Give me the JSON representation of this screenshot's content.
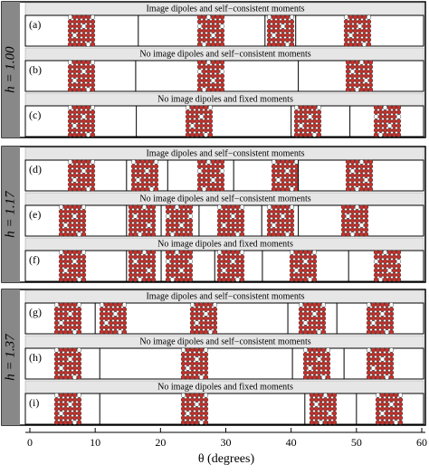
{
  "chart_data": {
    "type": "phase-strips",
    "xlabel": "θ (degrees)",
    "xlim": [
      0,
      60
    ],
    "xticks": [
      0,
      10,
      20,
      30,
      40,
      50,
      60
    ],
    "groups": [
      {
        "label": "h = 1.00",
        "panels": [
          {
            "label": "(a)",
            "header": "Image dipoles and self−consistent moments",
            "transitions": [
              16.6,
              36.0,
              40.7
            ]
          },
          {
            "label": "(b)",
            "header": "No image dipoles and self−consistent moments",
            "transitions": [
              16.2,
              41.1
            ]
          },
          {
            "label": "(c)",
            "header": "No image dipoles and fixed moments",
            "transitions": [
              16.3,
              40.0,
              49.0
            ]
          }
        ]
      },
      {
        "label": "h = 1.17",
        "panels": [
          {
            "label": "(d)",
            "header": "Image dipoles and self−consistent moments",
            "transitions": [
              14.8,
              21.1,
              31.2,
              41.1
            ]
          },
          {
            "label": "(e)",
            "header": "No image dipoles and self−consistent moments",
            "transitions": [
              14.8,
              20.1,
              25.9,
              35.5,
              41.1
            ]
          },
          {
            "label": "(f)",
            "header": "No image dipoles and fixed moments",
            "transitions": [
              14.8,
              20.1,
              28.3,
              35.6,
              48.8
            ]
          }
        ]
      },
      {
        "label": "h = 1.37",
        "panels": [
          {
            "label": "(g)",
            "header": "Image dipoles and self−consistent moments",
            "transitions": [
              10.0,
              39.5,
              47.0
            ]
          },
          {
            "label": "(h)",
            "header": "No image dipoles and self−consistent moments",
            "transitions": [
              10.7,
              40.2,
              48.1
            ]
          },
          {
            "label": "(i)",
            "header": "No image dipoles and fixed moments",
            "transitions": [
              10.7,
              42.1,
              50.0
            ]
          }
        ]
      }
    ]
  }
}
